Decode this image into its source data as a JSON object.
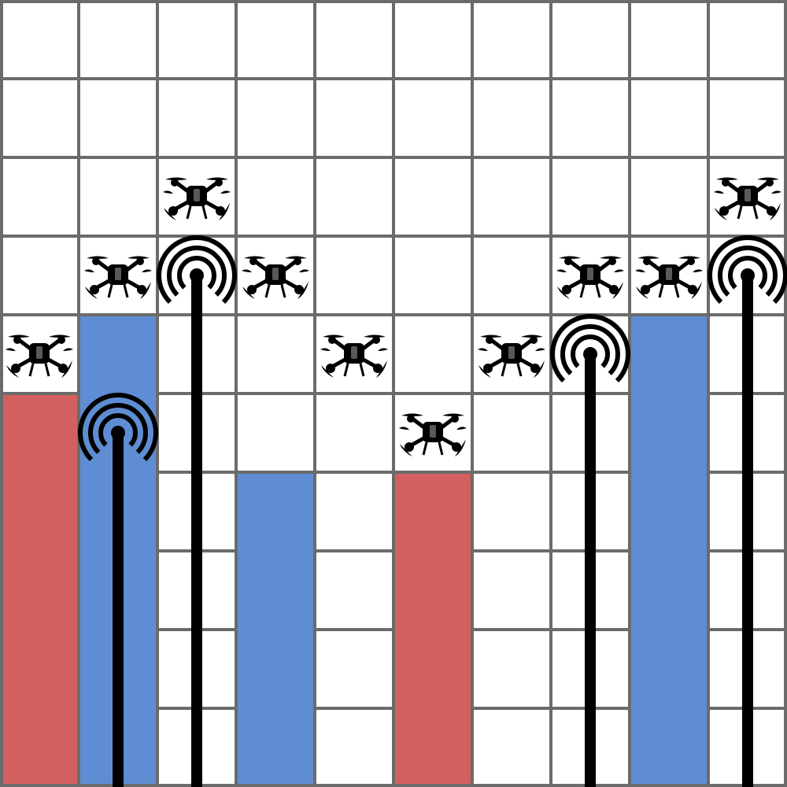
{
  "grid": {
    "cols": 10,
    "rows": 10,
    "background_color": "#ffffff",
    "line_color": "#6b6b6b"
  },
  "building_colors": {
    "red": "#d45f5f",
    "blue": "#5f8dd3"
  },
  "columns": [
    {
      "col": 0,
      "building": {
        "color": "red",
        "height": 5
      },
      "tower": null,
      "drone_row": 4
    },
    {
      "col": 1,
      "building": {
        "color": "blue",
        "height": 6
      },
      "tower": {
        "top_row": 5
      },
      "drone_row": 3
    },
    {
      "col": 2,
      "building": null,
      "tower": {
        "top_row": 3
      },
      "drone_row": 2
    },
    {
      "col": 3,
      "building": {
        "color": "blue",
        "height": 4
      },
      "tower": null,
      "drone_row": 3
    },
    {
      "col": 4,
      "building": null,
      "tower": null,
      "drone_row": 4
    },
    {
      "col": 5,
      "building": {
        "color": "red",
        "height": 4
      },
      "tower": null,
      "drone_row": 5
    },
    {
      "col": 6,
      "building": null,
      "tower": null,
      "drone_row": 4
    },
    {
      "col": 7,
      "building": null,
      "tower": {
        "top_row": 4
      },
      "drone_row": 3
    },
    {
      "col": 8,
      "building": {
        "color": "blue",
        "height": 6
      },
      "tower": null,
      "drone_row": 3
    },
    {
      "col": 9,
      "building": null,
      "tower": {
        "top_row": 3
      },
      "drone_row": 2
    }
  ],
  "icons": {
    "drone": "drone-icon",
    "tower": "signal-tower-icon"
  }
}
